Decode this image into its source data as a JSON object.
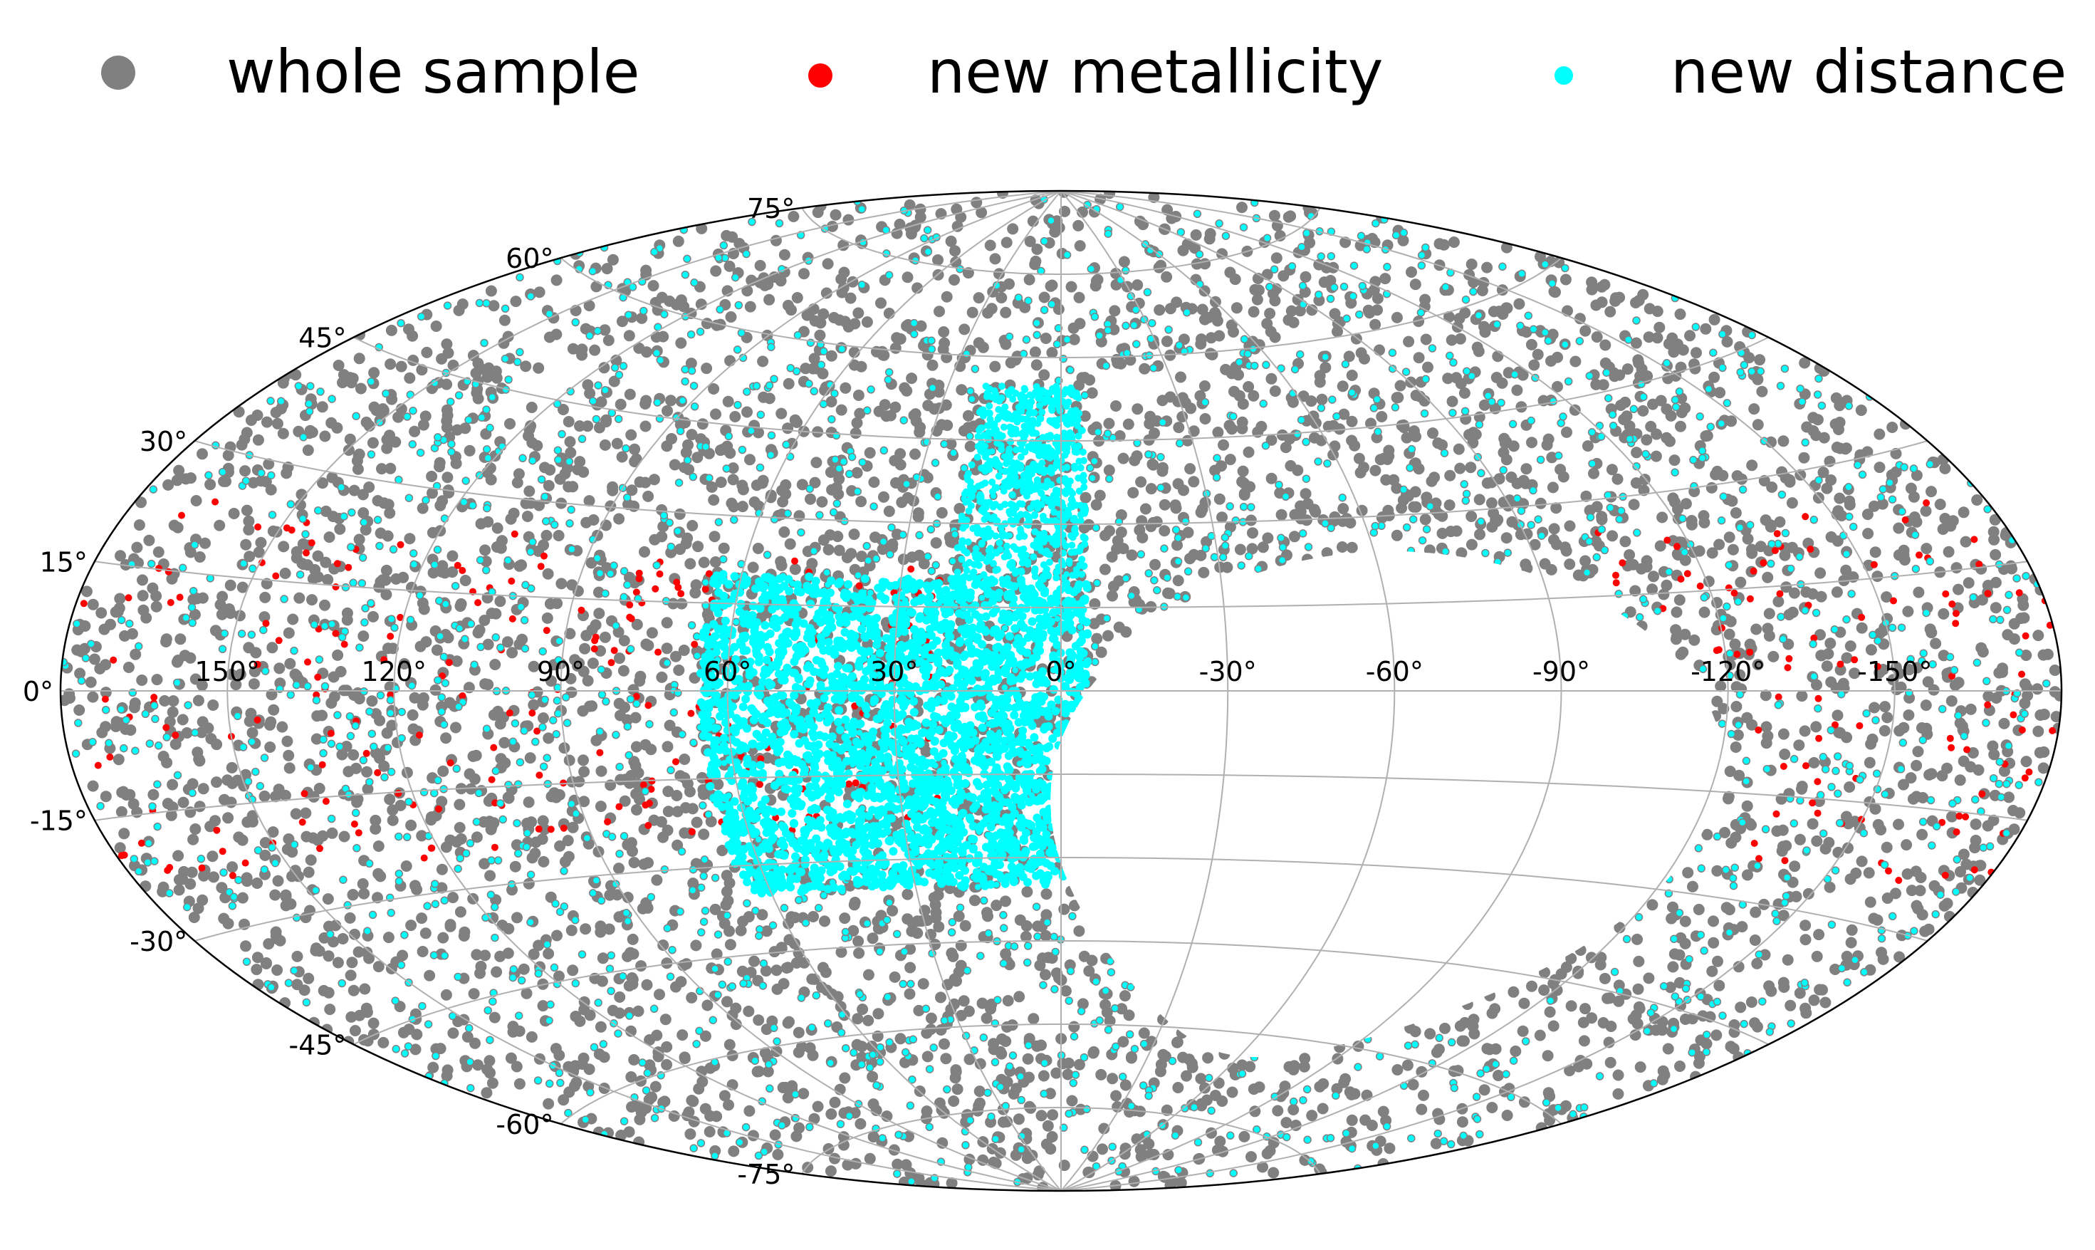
{
  "chart_data": {
    "type": "scatter",
    "projection": "aitoff",
    "grid": true,
    "legend_position": "top",
    "series": [
      {
        "name": "whole sample",
        "color": "#808080",
        "marker": "circle-large"
      },
      {
        "name": "new metallicity",
        "color": "#ff0000",
        "marker": "circle-medium"
      },
      {
        "name": "new distance",
        "color": "#00ffff",
        "marker": "circle-small"
      }
    ],
    "xlim": [
      -180,
      180
    ],
    "ylim": [
      -90,
      90
    ],
    "x_ticks": [
      {
        "value": 150,
        "label": "150°"
      },
      {
        "value": 120,
        "label": "120°"
      },
      {
        "value": 90,
        "label": "90°"
      },
      {
        "value": 60,
        "label": "60°"
      },
      {
        "value": 30,
        "label": "30°"
      },
      {
        "value": 0,
        "label": "0°"
      },
      {
        "value": -30,
        "label": "-30°"
      },
      {
        "value": -60,
        "label": "-60°"
      },
      {
        "value": -90,
        "label": "-90°"
      },
      {
        "value": -120,
        "label": "-120°"
      },
      {
        "value": -150,
        "label": "-150°"
      }
    ],
    "y_ticks": [
      {
        "value": 75,
        "label": "75°"
      },
      {
        "value": 60,
        "label": "60°"
      },
      {
        "value": 45,
        "label": "45°"
      },
      {
        "value": 30,
        "label": "30°"
      },
      {
        "value": 15,
        "label": "15°"
      },
      {
        "value": 0,
        "label": "0°"
      },
      {
        "value": -15,
        "label": "-15°"
      },
      {
        "value": -30,
        "label": "-30°"
      },
      {
        "value": -45,
        "label": "-45°"
      },
      {
        "value": -60,
        "label": "-60°"
      },
      {
        "value": -75,
        "label": "-75°"
      }
    ],
    "sky_coverage": {
      "note": "Points cover most of the sky except an empty region centred near (lon -60°, lat -20°); dense new-distance band near lon 0°–60°, lat -30°–+15°",
      "gap_center": [
        -60,
        -20
      ]
    }
  }
}
